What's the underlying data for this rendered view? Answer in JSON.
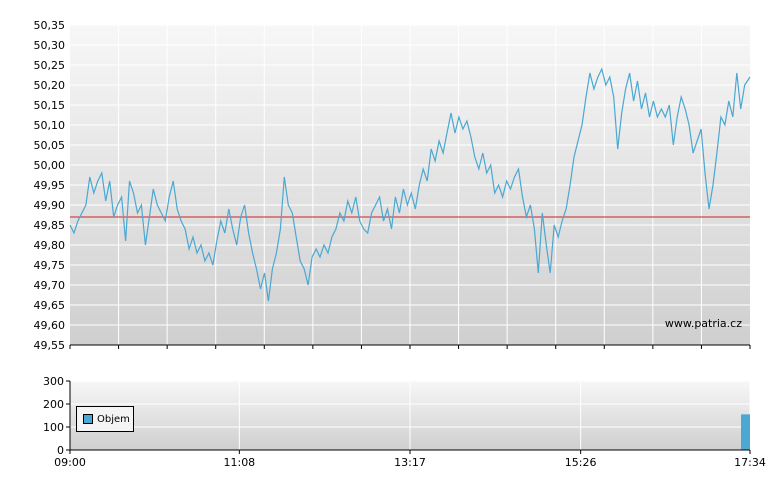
{
  "chart_data": [
    {
      "type": "line",
      "title": "",
      "xlabel": "",
      "ylabel": "",
      "x_tick_labels": [
        "09:00",
        "11:08",
        "13:17",
        "15:26",
        "17:34"
      ],
      "x_range": [
        "09:00",
        "17:34"
      ],
      "y_ticks": [
        "50,35",
        "50,30",
        "50,25",
        "50,20",
        "50,15",
        "50,10",
        "50,05",
        "50,00",
        "49,95",
        "49,90",
        "49,85",
        "49,80",
        "49,75",
        "49,70",
        "49,65",
        "49,60",
        "49,55"
      ],
      "ylim": [
        49.55,
        50.35
      ],
      "grid": true,
      "reference_line": {
        "value": 49.87,
        "color": "#cc2222"
      },
      "watermark": "www.patria.cz",
      "series": [
        {
          "color": "#4aa8d2",
          "points": [
            [
              "09:00",
              49.85
            ],
            [
              "09:03",
              49.83
            ],
            [
              "09:06",
              49.86
            ],
            [
              "09:09",
              49.88
            ],
            [
              "09:12",
              49.9
            ],
            [
              "09:15",
              49.97
            ],
            [
              "09:18",
              49.93
            ],
            [
              "09:21",
              49.96
            ],
            [
              "09:24",
              49.98
            ],
            [
              "09:27",
              49.91
            ],
            [
              "09:30",
              49.96
            ],
            [
              "09:33",
              49.87
            ],
            [
              "09:36",
              49.9
            ],
            [
              "09:39",
              49.92
            ],
            [
              "09:42",
              49.81
            ],
            [
              "09:45",
              49.96
            ],
            [
              "09:48",
              49.93
            ],
            [
              "09:51",
              49.88
            ],
            [
              "09:54",
              49.9
            ],
            [
              "09:57",
              49.8
            ],
            [
              "10:00",
              49.87
            ],
            [
              "10:03",
              49.94
            ],
            [
              "10:06",
              49.9
            ],
            [
              "10:09",
              49.88
            ],
            [
              "10:12",
              49.86
            ],
            [
              "10:15",
              49.92
            ],
            [
              "10:18",
              49.96
            ],
            [
              "10:21",
              49.89
            ],
            [
              "10:24",
              49.86
            ],
            [
              "10:27",
              49.84
            ],
            [
              "10:30",
              49.79
            ],
            [
              "10:33",
              49.82
            ],
            [
              "10:36",
              49.78
            ],
            [
              "10:39",
              49.8
            ],
            [
              "10:42",
              49.76
            ],
            [
              "10:45",
              49.78
            ],
            [
              "10:48",
              49.75
            ],
            [
              "10:51",
              49.81
            ],
            [
              "10:54",
              49.86
            ],
            [
              "10:57",
              49.83
            ],
            [
              "11:00",
              49.89
            ],
            [
              "11:03",
              49.84
            ],
            [
              "11:06",
              49.8
            ],
            [
              "11:09",
              49.87
            ],
            [
              "11:12",
              49.9
            ],
            [
              "11:15",
              49.83
            ],
            [
              "11:18",
              49.78
            ],
            [
              "11:21",
              49.74
            ],
            [
              "11:24",
              49.69
            ],
            [
              "11:27",
              49.73
            ],
            [
              "11:30",
              49.66
            ],
            [
              "11:33",
              49.74
            ],
            [
              "11:36",
              49.78
            ],
            [
              "11:39",
              49.84
            ],
            [
              "11:42",
              49.97
            ],
            [
              "11:45",
              49.9
            ],
            [
              "11:48",
              49.88
            ],
            [
              "11:51",
              49.82
            ],
            [
              "11:54",
              49.76
            ],
            [
              "11:57",
              49.74
            ],
            [
              "12:00",
              49.7
            ],
            [
              "12:03",
              49.77
            ],
            [
              "12:06",
              49.79
            ],
            [
              "12:09",
              49.77
            ],
            [
              "12:12",
              49.8
            ],
            [
              "12:15",
              49.78
            ],
            [
              "12:18",
              49.82
            ],
            [
              "12:21",
              49.84
            ],
            [
              "12:24",
              49.88
            ],
            [
              "12:27",
              49.86
            ],
            [
              "12:30",
              49.91
            ],
            [
              "12:33",
              49.88
            ],
            [
              "12:36",
              49.92
            ],
            [
              "12:39",
              49.86
            ],
            [
              "12:42",
              49.84
            ],
            [
              "12:45",
              49.83
            ],
            [
              "12:48",
              49.88
            ],
            [
              "12:51",
              49.9
            ],
            [
              "12:54",
              49.92
            ],
            [
              "12:57",
              49.86
            ],
            [
              "13:00",
              49.89
            ],
            [
              "13:03",
              49.84
            ],
            [
              "13:06",
              49.92
            ],
            [
              "13:09",
              49.88
            ],
            [
              "13:12",
              49.94
            ],
            [
              "13:15",
              49.9
            ],
            [
              "13:18",
              49.93
            ],
            [
              "13:21",
              49.89
            ],
            [
              "13:24",
              49.95
            ],
            [
              "13:27",
              49.99
            ],
            [
              "13:30",
              49.96
            ],
            [
              "13:33",
              50.04
            ],
            [
              "13:36",
              50.01
            ],
            [
              "13:39",
              50.06
            ],
            [
              "13:42",
              50.03
            ],
            [
              "13:45",
              50.08
            ],
            [
              "13:48",
              50.13
            ],
            [
              "13:51",
              50.08
            ],
            [
              "13:54",
              50.12
            ],
            [
              "13:57",
              50.09
            ],
            [
              "14:00",
              50.11
            ],
            [
              "14:03",
              50.07
            ],
            [
              "14:06",
              50.02
            ],
            [
              "14:09",
              49.99
            ],
            [
              "14:12",
              50.03
            ],
            [
              "14:15",
              49.98
            ],
            [
              "14:18",
              50.0
            ],
            [
              "14:21",
              49.93
            ],
            [
              "14:24",
              49.95
            ],
            [
              "14:27",
              49.92
            ],
            [
              "14:30",
              49.96
            ],
            [
              "14:33",
              49.94
            ],
            [
              "14:36",
              49.97
            ],
            [
              "14:39",
              49.99
            ],
            [
              "14:42",
              49.92
            ],
            [
              "14:45",
              49.87
            ],
            [
              "14:48",
              49.9
            ],
            [
              "14:51",
              49.84
            ],
            [
              "14:54",
              49.73
            ],
            [
              "14:57",
              49.88
            ],
            [
              "15:00",
              49.8
            ],
            [
              "15:03",
              49.73
            ],
            [
              "15:06",
              49.85
            ],
            [
              "15:09",
              49.82
            ],
            [
              "15:12",
              49.86
            ],
            [
              "15:15",
              49.89
            ],
            [
              "15:18",
              49.95
            ],
            [
              "15:21",
              50.02
            ],
            [
              "15:24",
              50.06
            ],
            [
              "15:27",
              50.1
            ],
            [
              "15:30",
              50.17
            ],
            [
              "15:33",
              50.23
            ],
            [
              "15:36",
              50.19
            ],
            [
              "15:39",
              50.22
            ],
            [
              "15:42",
              50.24
            ],
            [
              "15:45",
              50.2
            ],
            [
              "15:48",
              50.22
            ],
            [
              "15:51",
              50.17
            ],
            [
              "15:54",
              50.04
            ],
            [
              "15:57",
              50.13
            ],
            [
              "16:00",
              50.19
            ],
            [
              "16:03",
              50.23
            ],
            [
              "16:06",
              50.16
            ],
            [
              "16:09",
              50.21
            ],
            [
              "16:12",
              50.14
            ],
            [
              "16:15",
              50.18
            ],
            [
              "16:18",
              50.12
            ],
            [
              "16:21",
              50.16
            ],
            [
              "16:24",
              50.12
            ],
            [
              "16:27",
              50.14
            ],
            [
              "16:30",
              50.12
            ],
            [
              "16:33",
              50.15
            ],
            [
              "16:36",
              50.05
            ],
            [
              "16:39",
              50.12
            ],
            [
              "16:42",
              50.17
            ],
            [
              "16:45",
              50.14
            ],
            [
              "16:48",
              50.1
            ],
            [
              "16:51",
              50.03
            ],
            [
              "16:54",
              50.06
            ],
            [
              "16:57",
              50.09
            ],
            [
              "17:00",
              49.98
            ],
            [
              "17:03",
              49.89
            ],
            [
              "17:06",
              49.95
            ],
            [
              "17:09",
              50.03
            ],
            [
              "17:12",
              50.12
            ],
            [
              "17:15",
              50.1
            ],
            [
              "17:18",
              50.16
            ],
            [
              "17:21",
              50.12
            ],
            [
              "17:24",
              50.23
            ],
            [
              "17:27",
              50.14
            ],
            [
              "17:30",
              50.2
            ],
            [
              "17:34",
              50.22
            ]
          ]
        }
      ]
    },
    {
      "type": "bar",
      "title": "",
      "xlabel": "",
      "ylabel": "",
      "y_ticks": [
        "300",
        "200",
        "100",
        "0"
      ],
      "ylim": [
        0,
        300
      ],
      "grid": true,
      "legend": {
        "placement": "left",
        "entries": [
          "Objem"
        ]
      },
      "series": [
        {
          "name": "Objem",
          "color": "#4aa8d2",
          "bars": [
            [
              "17:34",
              155
            ]
          ]
        }
      ]
    }
  ]
}
